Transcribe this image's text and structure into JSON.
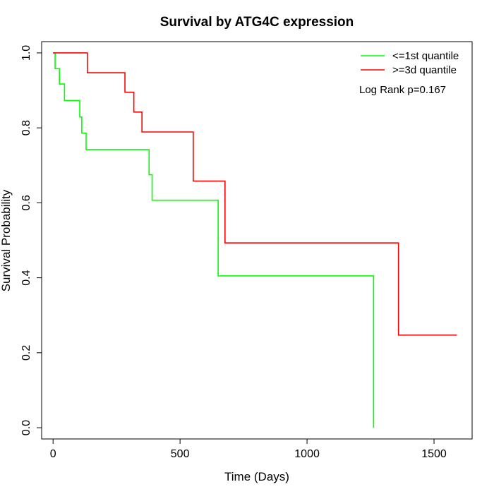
{
  "chart_data": {
    "type": "line",
    "step": true,
    "title": "Survival by ATG4C expression",
    "xlabel": "Time (Days)",
    "ylabel": "Survival Probability",
    "xlim": [
      -45,
      1650
    ],
    "ylim": [
      -0.03,
      1.03
    ],
    "xticks": [
      0,
      500,
      1000,
      1500
    ],
    "yticks": [
      0.0,
      0.2,
      0.4,
      0.6,
      0.8,
      1.0
    ],
    "xtick_labels": [
      "0",
      "500",
      "1000",
      "1500"
    ],
    "ytick_labels": [
      "0.0",
      "0.2",
      "0.4",
      "0.6",
      "0.8",
      "1.0"
    ],
    "grid": false,
    "legend_position": "top-right",
    "series": [
      {
        "name": "<=1st quantile",
        "color": "#00ff00",
        "x": [
          0,
          8,
          25,
          45,
          105,
          113,
          130,
          378,
          390,
          650,
          1262,
          1262
        ],
        "y": [
          1.0,
          0.958,
          0.917,
          0.873,
          0.829,
          0.786,
          0.742,
          0.675,
          0.607,
          0.405,
          0.405,
          0.0
        ]
      },
      {
        "name": ">=3d quantile",
        "color": "#ff0000",
        "x": [
          0,
          135,
          283,
          318,
          350,
          552,
          677,
          1360,
          1590
        ],
        "y": [
          1.0,
          0.947,
          0.895,
          0.842,
          0.789,
          0.658,
          0.493,
          0.247,
          0.247
        ]
      }
    ],
    "annotations": [
      "Log Rank p=0.167"
    ]
  }
}
